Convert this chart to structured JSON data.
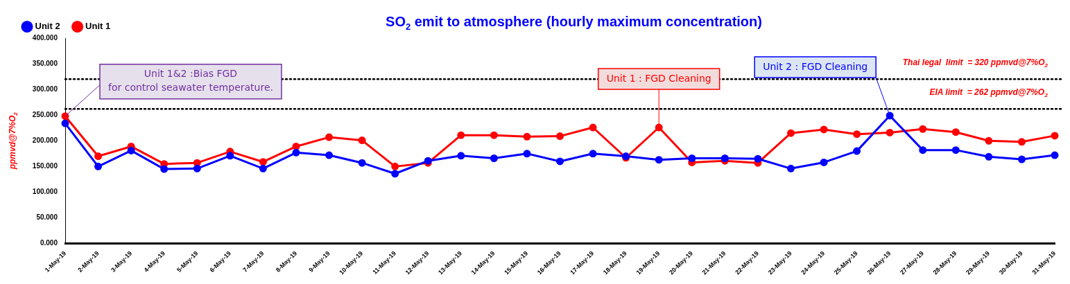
{
  "chart_data": {
    "type": "line",
    "title": "SO$_{2}$ emit to atmosphere (hourly maximum concentration)",
    "ylabel": "ppmvd@7%O$_{2}$",
    "categories": [
      "1-May-19",
      "2-May-19",
      "3-May-19",
      "4-May-19",
      "5-May-19",
      "6-May-19",
      "7-May-19",
      "8-May-19",
      "9-May-19",
      "10-May-19",
      "11-May-19",
      "12-May-19",
      "13-May-19",
      "14-May-19",
      "15-May-19",
      "16-May-19",
      "17-May-19",
      "18-May-19",
      "19-May-19",
      "20-May-19",
      "21-May-19",
      "22-May-19",
      "23-May-19",
      "24-May-19",
      "25-May-19",
      "26-May-19",
      "27-May-19",
      "28-May-19",
      "29-May-19",
      "30-May-19",
      "31-May-19"
    ],
    "series": [
      {
        "name": "Unit 1",
        "color": "#ff0000",
        "values": [
          248,
          170,
          189,
          155,
          157,
          179,
          159,
          189,
          207,
          201,
          150,
          157,
          211,
          211,
          208,
          209,
          226,
          167,
          226,
          158,
          161,
          157,
          215,
          222,
          213,
          216,
          223,
          217,
          200,
          198,
          210
        ]
      },
      {
        "name": "Unit 2",
        "color": "#0000ff",
        "values": [
          234,
          150,
          181,
          145,
          146,
          171,
          146,
          177,
          172,
          157,
          136,
          161,
          171,
          166,
          175,
          160,
          175,
          170,
          163,
          166,
          166,
          165,
          146,
          158,
          180,
          249,
          182,
          182,
          169,
          164,
          172
        ]
      }
    ],
    "ylim": [
      0,
      400
    ],
    "yticks": [
      {
        "value": 0,
        "label": "0.000"
      },
      {
        "value": 50,
        "label": "50.000"
      },
      {
        "value": 100,
        "label": "100.000"
      },
      {
        "value": 150,
        "label": "150.000"
      },
      {
        "value": 200,
        "label": "200.000"
      },
      {
        "value": 250,
        "label": "250.000"
      },
      {
        "value": 300,
        "label": "300.000"
      },
      {
        "value": 350,
        "label": "350.000"
      },
      {
        "value": 400,
        "label": "400.000"
      }
    ],
    "ref_lines": [
      {
        "axis": "y",
        "value": 320,
        "label": "Thai legal  limit  = 320 ppmvd@7%O$_{2}$",
        "color": "#000000",
        "line_style": "dotted"
      },
      {
        "axis": "y",
        "value": 262,
        "label": "EIA limit  = 262 ppmvd@7%O$_{2}$",
        "color": "#000000",
        "line_style": "dotted"
      }
    ],
    "annotations": [
      {
        "text": "Unit 1&2 :Bias FGD\nfor control seawater temperature.",
        "x": "1-May-19",
        "y": 248
      },
      {
        "text": "Unit 1 : FGD Cleaning",
        "x": "19-May-19",
        "y": 226
      },
      {
        "text": "Unit 2 : FGD Cleaning",
        "x": "26-May-19",
        "y": 249
      }
    ],
    "grid": false,
    "legend": "top left",
    "marker": "circle",
    "line_style": "solid"
  }
}
